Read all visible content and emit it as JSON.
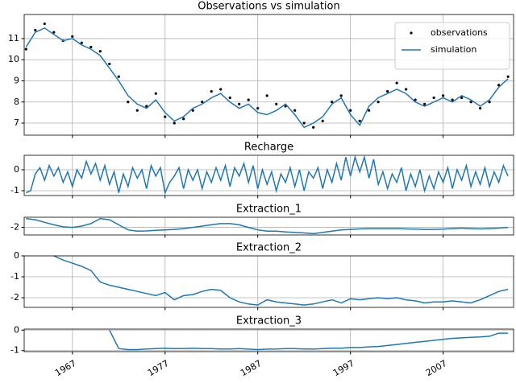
{
  "chart_data": [
    {
      "type": "line",
      "title": "Observations vs simulation",
      "legend": "upper right",
      "grid": true,
      "x": [
        1962,
        1963,
        1964,
        1965,
        1966,
        1967,
        1968,
        1969,
        1970,
        1971,
        1972,
        1973,
        1974,
        1975,
        1976,
        1977,
        1978,
        1979,
        1980,
        1981,
        1982,
        1983,
        1984,
        1985,
        1986,
        1987,
        1988,
        1989,
        1990,
        1991,
        1992,
        1993,
        1994,
        1995,
        1996,
        1997,
        1998,
        1999,
        2000,
        2001,
        2002,
        2003,
        2004,
        2005,
        2006,
        2007,
        2008,
        2009,
        2010,
        2011,
        2012,
        2013,
        2014
      ],
      "series": [
        {
          "name": "observations",
          "color": "#000000",
          "style": "points",
          "values": [
            10.5,
            11.4,
            11.7,
            11.3,
            10.9,
            11.1,
            10.8,
            10.6,
            10.4,
            9.8,
            9.2,
            8.0,
            7.6,
            7.8,
            8.4,
            7.3,
            7.0,
            7.2,
            7.6,
            8.0,
            8.5,
            8.6,
            8.2,
            7.9,
            8.1,
            7.7,
            8.3,
            7.9,
            7.8,
            7.6,
            7.0,
            6.8,
            7.1,
            8.0,
            8.3,
            7.6,
            7.1,
            7.6,
            8.0,
            8.5,
            8.9,
            8.6,
            8.1,
            7.9,
            8.2,
            8.3,
            8.1,
            8.2,
            8.0,
            7.7,
            8.0,
            8.8,
            9.2
          ]
        },
        {
          "name": "simulation",
          "color": "#1f77b4",
          "style": "line",
          "values": [
            10.6,
            11.3,
            11.5,
            11.2,
            10.9,
            11.0,
            10.7,
            10.5,
            10.2,
            9.6,
            9.0,
            8.3,
            7.9,
            7.7,
            8.1,
            7.5,
            7.1,
            7.3,
            7.7,
            7.9,
            8.2,
            8.4,
            8.0,
            7.7,
            7.9,
            7.5,
            7.4,
            7.6,
            7.9,
            7.4,
            6.8,
            7.0,
            7.3,
            7.9,
            8.2,
            7.4,
            6.9,
            7.8,
            8.2,
            8.4,
            8.6,
            8.4,
            8.0,
            7.8,
            8.0,
            8.2,
            8.0,
            8.3,
            8.1,
            7.8,
            8.1,
            8.7,
            9.1
          ]
        }
      ],
      "xlim": [
        1961.8,
        2014.6
      ],
      "xticks": [
        1967,
        1977,
        1987,
        1997,
        2007
      ],
      "ylim": [
        6.43,
        12.14
      ],
      "yticks": [
        7,
        8,
        9,
        10,
        11
      ]
    },
    {
      "type": "line",
      "title": "Recharge",
      "grid": true,
      "color": "#1f77b4",
      "x": [
        1962,
        1962.5,
        1963,
        1963.5,
        1964,
        1964.5,
        1965,
        1965.5,
        1966,
        1966.5,
        1967,
        1967.5,
        1968,
        1968.5,
        1969,
        1969.5,
        1970,
        1970.5,
        1971,
        1971.5,
        1972,
        1972.5,
        1973,
        1973.5,
        1974,
        1974.5,
        1975,
        1975.5,
        1976,
        1976.5,
        1977,
        1977.5,
        1978,
        1978.5,
        1979,
        1979.5,
        1980,
        1980.5,
        1981,
        1981.5,
        1982,
        1982.5,
        1983,
        1983.5,
        1984,
        1984.5,
        1985,
        1985.5,
        1986,
        1986.5,
        1987,
        1987.5,
        1988,
        1988.5,
        1989,
        1989.5,
        1990,
        1990.5,
        1991,
        1991.5,
        1992,
        1992.5,
        1993,
        1993.5,
        1994,
        1994.5,
        1995,
        1995.5,
        1996,
        1996.5,
        1997,
        1997.5,
        1998,
        1998.5,
        1999,
        1999.5,
        2000,
        2000.5,
        2001,
        2001.5,
        2002,
        2002.5,
        2003,
        2003.5,
        2004,
        2004.5,
        2005,
        2005.5,
        2006,
        2006.5,
        2007,
        2007.5,
        2008,
        2008.5,
        2009,
        2009.5,
        2010,
        2010.5,
        2011,
        2011.5,
        2012,
        2012.5,
        2013,
        2013.5,
        2014
      ],
      "values": [
        -1.1,
        -1.0,
        -0.2,
        0.1,
        -0.5,
        0.2,
        -0.3,
        0.1,
        -0.6,
        -0.1,
        -0.8,
        0.0,
        -0.4,
        0.4,
        -0.2,
        0.3,
        -0.5,
        0.2,
        -0.7,
        -0.1,
        -1.1,
        -0.2,
        -0.8,
        0.1,
        -0.4,
        0.0,
        -0.9,
        0.2,
        -0.3,
        0.1,
        -1.1,
        -0.6,
        -0.3,
        0.1,
        -0.9,
        0.0,
        -0.5,
        0.0,
        -0.9,
        -0.1,
        -0.6,
        0.1,
        -0.5,
        0.2,
        -0.8,
        0.1,
        -0.3,
        0.3,
        -0.6,
        0.2,
        -0.9,
        0.0,
        -0.7,
        -0.1,
        -1.0,
        -0.2,
        -0.6,
        0.1,
        -0.8,
        0.0,
        -1.0,
        -0.1,
        -0.4,
        0.1,
        -0.9,
        0.0,
        -0.6,
        0.3,
        -0.5,
        0.6,
        -0.3,
        0.6,
        -0.1,
        0.6,
        -0.4,
        0.5,
        -0.7,
        -0.1,
        -0.9,
        -0.2,
        -0.6,
        0.1,
        -1.0,
        -0.2,
        -0.8,
        0.0,
        -1.0,
        -0.3,
        -0.9,
        -0.1,
        -0.6,
        0.1,
        -0.9,
        0.0,
        -0.5,
        0.2,
        -0.8,
        -0.1,
        -0.7,
        0.1,
        -0.8,
        -0.1,
        -0.6,
        0.2,
        -0.3
      ],
      "xlim": [
        1961.8,
        2014.6
      ],
      "xticks": [
        1967,
        1977,
        1987,
        1997,
        2007
      ],
      "ylim": [
        -1.23,
        0.69
      ],
      "yticks": [
        -1,
        0
      ]
    },
    {
      "type": "line",
      "title": "Extraction_1",
      "grid": true,
      "color": "#1f77b4",
      "x": [
        1962,
        1963,
        1964,
        1965,
        1966,
        1967,
        1968,
        1969,
        1970,
        1971,
        1972,
        1973,
        1974,
        1975,
        1976,
        1977,
        1978,
        1979,
        1980,
        1981,
        1982,
        1983,
        1984,
        1985,
        1986,
        1987,
        1988,
        1989,
        1990,
        1991,
        1992,
        1993,
        1994,
        1995,
        1996,
        1997,
        1998,
        1999,
        2000,
        2001,
        2002,
        2003,
        2004,
        2005,
        2006,
        2007,
        2008,
        2009,
        2010,
        2011,
        2012,
        2013,
        2014
      ],
      "values": [
        -1.65,
        -1.7,
        -1.8,
        -1.9,
        -1.98,
        -2.0,
        -1.95,
        -1.85,
        -1.65,
        -1.7,
        -1.9,
        -2.1,
        -2.15,
        -2.14,
        -2.12,
        -2.1,
        -2.08,
        -2.05,
        -2.0,
        -1.95,
        -1.9,
        -1.85,
        -1.85,
        -1.9,
        -2.0,
        -2.1,
        -2.15,
        -2.15,
        -2.18,
        -2.2,
        -2.22,
        -2.25,
        -2.2,
        -2.15,
        -2.1,
        -2.08,
        -2.06,
        -2.05,
        -2.05,
        -2.05,
        -2.05,
        -2.06,
        -2.07,
        -2.08,
        -2.08,
        -2.07,
        -2.05,
        -2.03,
        -2.05,
        -2.06,
        -2.05,
        -2.03,
        -2.0
      ],
      "xlim": [
        1961.8,
        2014.6
      ],
      "xticks": [
        1967,
        1977,
        1987,
        1997,
        2007
      ],
      "ylim": [
        -2.3,
        -1.6
      ],
      "yticks": [
        -2
      ]
    },
    {
      "type": "line",
      "title": "Extraction_2",
      "grid": true,
      "color": "#1f77b4",
      "x": [
        1962,
        1963,
        1964,
        1965,
        1966,
        1967,
        1968,
        1969,
        1970,
        1971,
        1972,
        1973,
        1974,
        1975,
        1976,
        1977,
        1978,
        1979,
        1980,
        1981,
        1982,
        1983,
        1984,
        1985,
        1986,
        1987,
        1988,
        1989,
        1990,
        1991,
        1992,
        1993,
        1994,
        1995,
        1996,
        1997,
        1998,
        1999,
        2000,
        2001,
        2002,
        2003,
        2004,
        2005,
        2006,
        2007,
        2008,
        2009,
        2010,
        2011,
        2012,
        2013,
        2014
      ],
      "values": [
        null,
        null,
        null,
        0,
        -0.2,
        -0.35,
        -0.5,
        -0.7,
        -1.25,
        -1.4,
        -1.5,
        -1.6,
        -1.7,
        -1.8,
        -1.9,
        -1.75,
        -2.1,
        -1.9,
        -1.85,
        -1.7,
        -1.6,
        -1.65,
        -2.0,
        -2.2,
        -2.3,
        -2.35,
        -2.1,
        -2.2,
        -2.25,
        -2.3,
        -2.35,
        -2.3,
        -2.2,
        -2.1,
        -2.25,
        -2.05,
        -2.1,
        -2.05,
        -2.0,
        -2.05,
        -2.0,
        -2.1,
        -2.15,
        -2.25,
        -2.2,
        -2.2,
        -2.15,
        -2.2,
        -2.25,
        -2.1,
        -1.9,
        -1.7,
        -1.6
      ],
      "xlim": [
        1961.8,
        2014.6
      ],
      "xticks": [
        1967,
        1977,
        1987,
        1997,
        2007
      ],
      "ylim": [
        -2.46,
        0
      ],
      "yticks": [
        -2,
        -1,
        0
      ]
    },
    {
      "type": "line",
      "title": "Extraction_3",
      "grid": true,
      "color": "#1f77b4",
      "x": [
        1962,
        1963,
        1964,
        1965,
        1966,
        1967,
        1968,
        1969,
        1970,
        1971,
        1972,
        1973,
        1974,
        1975,
        1976,
        1977,
        1978,
        1979,
        1980,
        1981,
        1982,
        1983,
        1984,
        1985,
        1986,
        1987,
        1988,
        1989,
        1990,
        1991,
        1992,
        1993,
        1994,
        1995,
        1996,
        1997,
        1998,
        1999,
        2000,
        2001,
        2002,
        2003,
        2004,
        2005,
        2006,
        2007,
        2008,
        2009,
        2010,
        2011,
        2012,
        2013,
        2014
      ],
      "values": [
        null,
        null,
        null,
        null,
        null,
        null,
        null,
        null,
        null,
        0,
        -0.9,
        -0.95,
        -0.95,
        -0.92,
        -0.9,
        -0.88,
        -0.9,
        -0.9,
        -0.88,
        -0.9,
        -0.9,
        -0.92,
        -0.92,
        -0.9,
        -0.93,
        -0.95,
        -0.93,
        -0.92,
        -0.9,
        -0.9,
        -0.92,
        -0.93,
        -0.9,
        -0.88,
        -0.88,
        -0.85,
        -0.85,
        -0.82,
        -0.8,
        -0.75,
        -0.7,
        -0.65,
        -0.6,
        -0.55,
        -0.5,
        -0.45,
        -0.4,
        -0.38,
        -0.35,
        -0.33,
        -0.3,
        -0.15,
        -0.15
      ],
      "xlim": [
        1961.8,
        2014.6
      ],
      "xticks": [
        1967,
        1977,
        1987,
        1997,
        2007
      ],
      "ylim": [
        -1.05,
        0.05
      ],
      "yticks": [
        -1,
        0
      ]
    }
  ]
}
